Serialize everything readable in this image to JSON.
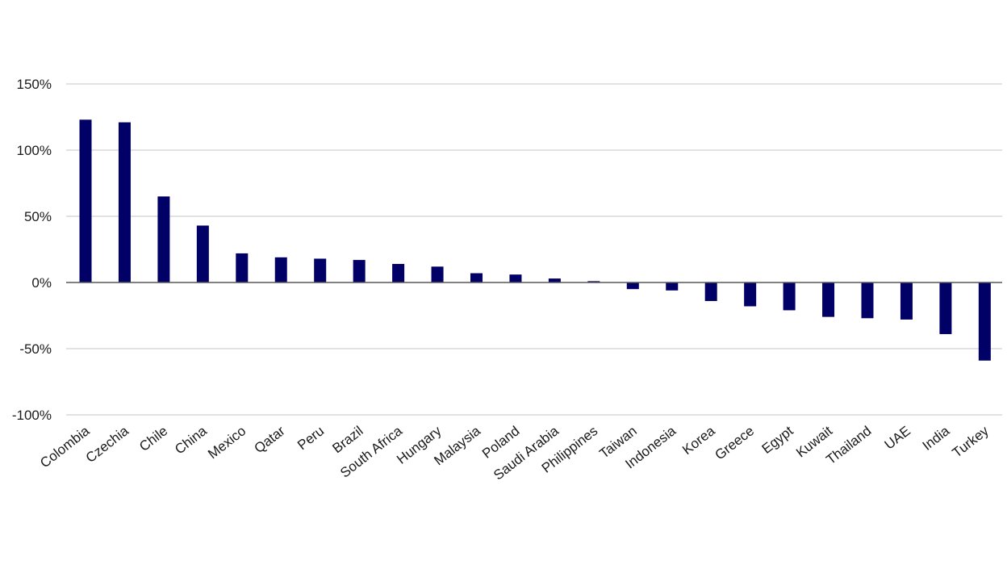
{
  "chart_data": {
    "type": "bar",
    "title": "",
    "xlabel": "",
    "ylabel": "",
    "ylim": [
      -100,
      150
    ],
    "y_ticks": [
      150,
      100,
      50,
      0,
      -50,
      -100
    ],
    "y_tick_labels": [
      "150%",
      "100%",
      "50%",
      "0%",
      "-50%",
      "-100%"
    ],
    "grid": true,
    "legend": "none",
    "bar_color": "#000066",
    "categories": [
      "Colombia",
      "Czechia",
      "Chile",
      "China",
      "Mexico",
      "Qatar",
      "Peru",
      "Brazil",
      "South Africa",
      "Hungary",
      "Malaysia",
      "Poland",
      "Saudi Arabia",
      "Philippines",
      "Taiwan",
      "Indonesia",
      "Korea",
      "Greece",
      "Egypt",
      "Kuwait",
      "Thailand",
      "UAE",
      "India",
      "Turkey"
    ],
    "values": [
      123,
      121,
      65,
      43,
      22,
      19,
      18,
      17,
      14,
      12,
      7,
      6,
      3,
      1,
      -5,
      -6,
      -14,
      -18,
      -21,
      -26,
      -27,
      -28,
      -39,
      -59
    ]
  }
}
